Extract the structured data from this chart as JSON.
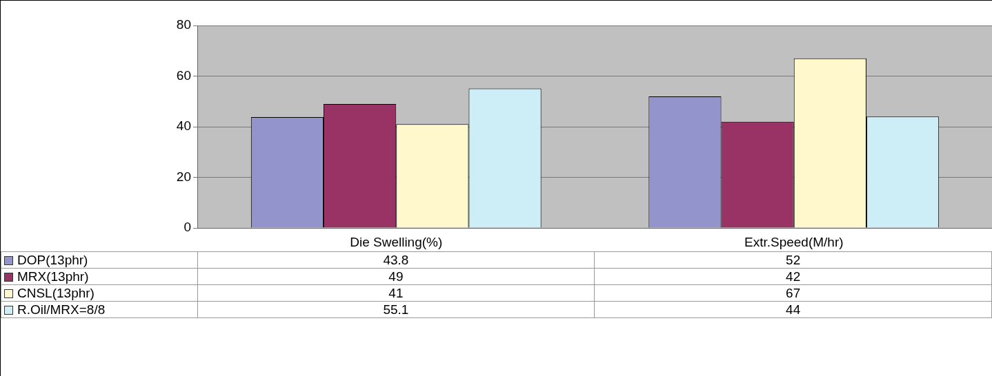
{
  "chart_data": {
    "type": "bar",
    "categories": [
      "Die Swelling(%)",
      "Extr.Speed(M/hr)"
    ],
    "series": [
      {
        "name": "DOP(13phr)",
        "color": "#9494cc",
        "values": [
          43.8,
          52
        ]
      },
      {
        "name": "MRX(13phr)",
        "color": "#993366",
        "values": [
          49,
          42
        ]
      },
      {
        "name": "CNSL(13phr)",
        "color": "#fff8cc",
        "values": [
          41,
          67
        ]
      },
      {
        "name": "R.Oil/MRX=8/8",
        "color": "#cdeef6",
        "values": [
          55.1,
          44
        ]
      }
    ],
    "ylim": [
      0,
      80
    ],
    "yticks": [
      0,
      20,
      40,
      60,
      80
    ],
    "grid": "y",
    "legend": "left",
    "data_labels": true
  }
}
